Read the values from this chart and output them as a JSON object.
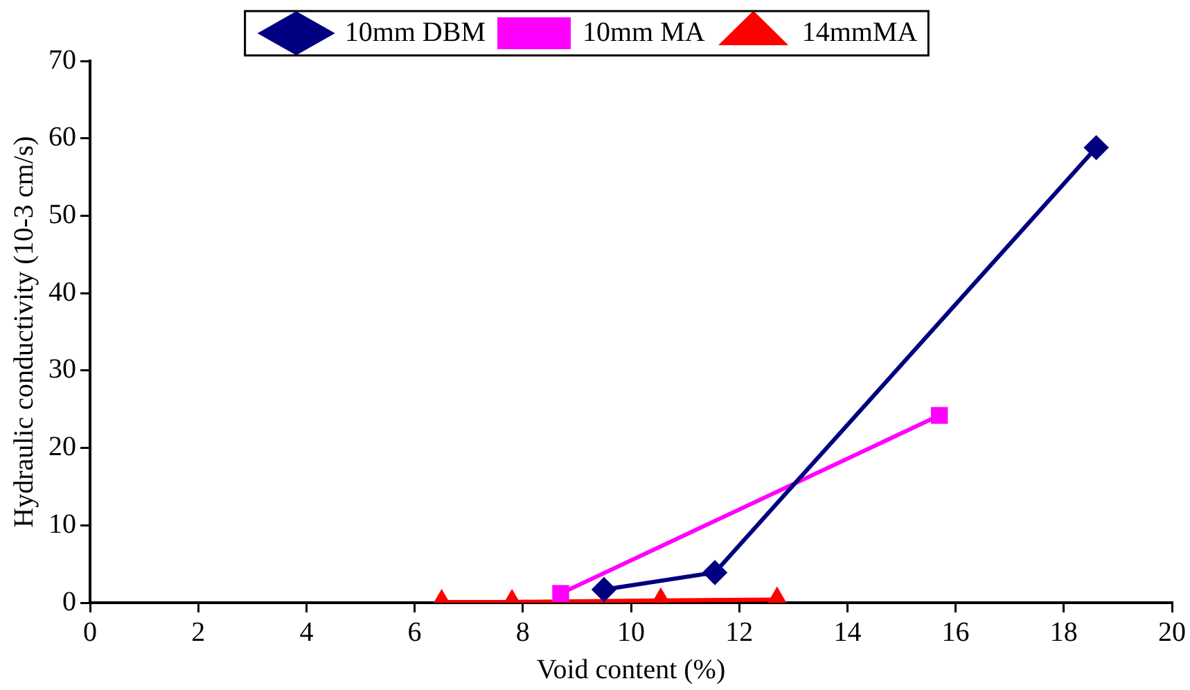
{
  "chart_data": {
    "type": "line",
    "xlabel": "Void content (%)",
    "ylabel": "Hydraulic conductivity (10-3 cm/s)",
    "xlim": [
      0,
      20
    ],
    "xticks": [
      0,
      2,
      4,
      6,
      8,
      10,
      12,
      14,
      16,
      18,
      20
    ],
    "ylim": [
      0,
      70
    ],
    "yticks": [
      0,
      10,
      20,
      30,
      40,
      50,
      60,
      70
    ],
    "grid": false,
    "legend": "top",
    "series": [
      {
        "name": "10mm DBM",
        "color": "#000080",
        "marker": "diamond",
        "x": [
          9.5,
          11.55,
          18.6
        ],
        "values": [
          1.7,
          3.9,
          58.8
        ]
      },
      {
        "name": "10mm MA",
        "color": "#ff00ff",
        "marker": "square",
        "x": [
          8.7,
          15.7
        ],
        "values": [
          1.2,
          24.2
        ]
      },
      {
        "name": "14mmMA",
        "color": "#ff0000",
        "marker": "triangle",
        "x": [
          6.5,
          7.8,
          10.55,
          12.7
        ],
        "values": [
          0.1,
          0.1,
          0.3,
          0.4
        ]
      }
    ]
  }
}
